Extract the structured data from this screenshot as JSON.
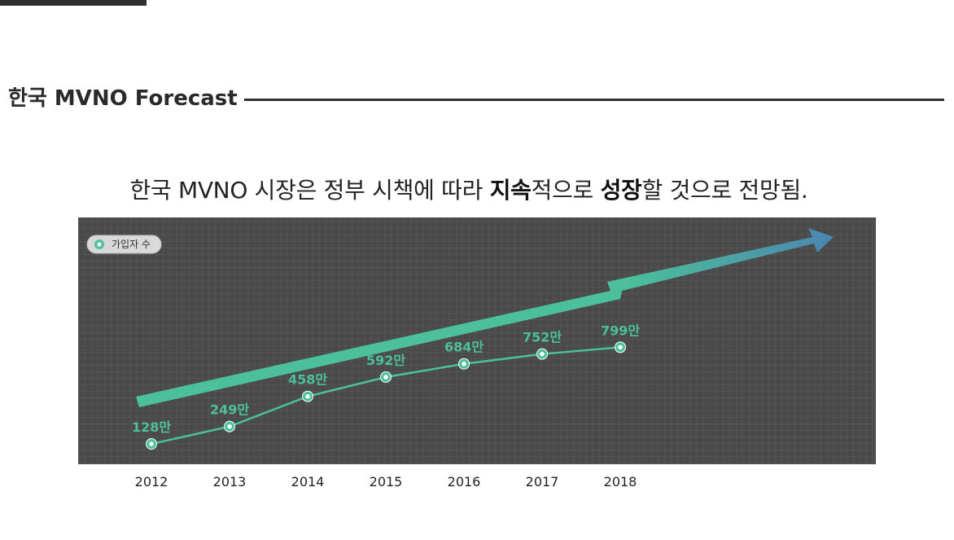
{
  "section": {
    "title": "한국 MVNO Forecast"
  },
  "headline": {
    "part1": "한국 MVNO 시장은 정부 시책에 따라 ",
    "bold1": "지속",
    "part2": "적으로 ",
    "bold2": "성장",
    "part3": "할 것으로 전망됨."
  },
  "chart_data": {
    "type": "line",
    "title": "",
    "xlabel": "",
    "ylabel": "",
    "x": [
      "2012",
      "2013",
      "2014",
      "2015",
      "2016",
      "2017",
      "2018"
    ],
    "series": [
      {
        "name": "가입자 수",
        "values": [
          128,
          249,
          458,
          592,
          684,
          752,
          799
        ],
        "labels": [
          "128만",
          "249만",
          "458만",
          "592만",
          "684만",
          "752만",
          "799만"
        ]
      }
    ],
    "ylim": [
      -13,
      1700
    ],
    "legend": "top-left",
    "grid": true,
    "colors": {
      "plot_bg": "#4a4a4a",
      "grid": "#5c5c5c",
      "line": "#4cc09a",
      "label": "#4cc09a",
      "arrow_start": "#4cc09a",
      "arrow_end": "#4b86b0"
    }
  }
}
